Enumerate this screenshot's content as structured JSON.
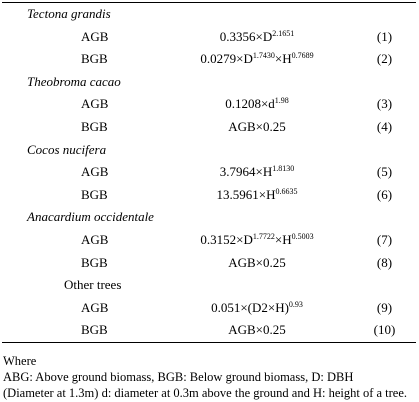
{
  "table": {
    "rows": [
      {
        "kind": "group",
        "label": "Tectona grandis"
      },
      {
        "kind": "eq",
        "type": "AGB",
        "eq": [
          [
            "0.3356×D",
            ""
          ],
          [
            "2.1651",
            "sup"
          ]
        ],
        "num": "(1)"
      },
      {
        "kind": "eq",
        "type": "BGB",
        "eq": [
          [
            "0.0279×D",
            ""
          ],
          [
            "1.7430",
            "sup"
          ],
          [
            "×H",
            ""
          ],
          [
            "0.7689",
            "sup"
          ]
        ],
        "num": "(2)"
      },
      {
        "kind": "group",
        "label": "Theobroma cacao"
      },
      {
        "kind": "eq",
        "type": "AGB",
        "eq": [
          [
            "0.1208×d",
            ""
          ],
          [
            "1.98",
            "sup"
          ]
        ],
        "num": "(3)"
      },
      {
        "kind": "eq",
        "type": "BGB",
        "eq": [
          [
            "AGB×0.25",
            ""
          ]
        ],
        "num": "(4)"
      },
      {
        "kind": "group",
        "label": "Cocos nucifera"
      },
      {
        "kind": "eq",
        "type": "AGB",
        "eq": [
          [
            "3.7964×H",
            ""
          ],
          [
            "1.8130",
            "sup"
          ]
        ],
        "num": "(5)"
      },
      {
        "kind": "eq",
        "type": "BGB",
        "eq": [
          [
            "13.5961×H",
            ""
          ],
          [
            "0.6635",
            "sup"
          ]
        ],
        "num": "(6)"
      },
      {
        "kind": "group",
        "label": "Anacardium occidentale"
      },
      {
        "kind": "eq",
        "type": "AGB",
        "eq": [
          [
            "0.3152×D",
            ""
          ],
          [
            "1.7722",
            "sup"
          ],
          [
            "×H",
            ""
          ],
          [
            "0.5003",
            "sup"
          ]
        ],
        "num": "(7)"
      },
      {
        "kind": "eq",
        "type": "BGB",
        "eq": [
          [
            "AGB×0.25",
            ""
          ]
        ],
        "num": "(8)"
      },
      {
        "kind": "group-plain",
        "label": "Other trees"
      },
      {
        "kind": "eq",
        "type": "AGB",
        "eq": [
          [
            "0.051×(D2×H)",
            ""
          ],
          [
            "0.93",
            "sup"
          ]
        ],
        "num": "(9)"
      },
      {
        "kind": "eq",
        "type": "BGB",
        "eq": [
          [
            "AGB×0.25",
            ""
          ]
        ],
        "num": "(10)"
      }
    ]
  },
  "notes": {
    "where": "Where",
    "line1": "ABG: Above ground biomass, BGB: Below ground biomass, D: DBH",
    "line2": "(Diameter at 1.3m) d: diameter at 0.3m above the ground and H: height of a tree."
  }
}
